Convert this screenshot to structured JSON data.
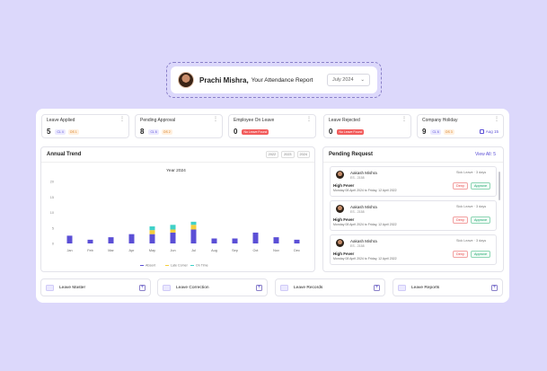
{
  "header": {
    "name": "Prachi Mishra,",
    "subtitle": "Your Attendance Report",
    "month": "July 2024"
  },
  "cards": [
    {
      "title": "Leave Applied",
      "value": "5",
      "chips": [
        {
          "text": "CL 4",
          "kind": "blue"
        },
        {
          "text": "OS 1",
          "kind": "orange"
        }
      ]
    },
    {
      "title": "Pending Approval",
      "value": "8",
      "chips": [
        {
          "text": "CL 6",
          "kind": "blue"
        },
        {
          "text": "OS 2",
          "kind": "orange"
        }
      ]
    },
    {
      "title": "Employee On Leave",
      "value": "0",
      "chips": [
        {
          "text": "No Leave Found",
          "kind": "red"
        }
      ]
    },
    {
      "title": "Leave Rejected",
      "value": "0",
      "chips": [
        {
          "text": "No Leave Found",
          "kind": "red"
        }
      ]
    },
    {
      "title": "Company Holiday",
      "value": "9",
      "chips": [
        {
          "text": "CL 6",
          "kind": "blue"
        },
        {
          "text": "OS 3",
          "kind": "orange"
        }
      ],
      "extra": "Aug 15"
    }
  ],
  "trend": {
    "title": "Annual Trend",
    "years": [
      "2022",
      "2023",
      "2024"
    ]
  },
  "chart_data": {
    "type": "bar",
    "title": "Year 2024",
    "categories": [
      "Jan",
      "Feb",
      "Mar",
      "Apr",
      "May",
      "Jun",
      "Jul",
      "Aug",
      "Sep",
      "Oct",
      "Nov",
      "Dec"
    ],
    "yticks": [
      "0",
      "5",
      "10",
      "15",
      "20"
    ],
    "ylim": [
      0,
      20
    ],
    "series": [
      {
        "name": "Absent",
        "color": "#5b4fd6",
        "values": [
          2.5,
          1.2,
          2,
          3,
          3,
          3.5,
          4.5,
          1.6,
          1.6,
          3.5,
          2,
          1.2
        ]
      },
      {
        "name": "Late Comer",
        "color": "#f5cf3b",
        "values": [
          0,
          0,
          0,
          0,
          1.3,
          1,
          1.5,
          0,
          0,
          0,
          0,
          0
        ]
      },
      {
        "name": "On Time",
        "color": "#3fd1c8",
        "values": [
          0,
          0,
          0,
          0,
          1.2,
          1.5,
          1,
          0,
          0,
          0,
          0,
          0
        ]
      }
    ],
    "legend_placement": "bottom"
  },
  "pending": {
    "title": "Pending Request",
    "view_all": "View All: 5",
    "requests": [
      {
        "name": "Aakash Mishra",
        "id": "ES - 2158",
        "type": "Sick Leave · 3 days",
        "reason": "High Fever",
        "dates": "Monday 08 April 2024 to Friday, 12 April 2022",
        "deny": "Deny",
        "approve": "Approve"
      },
      {
        "name": "Aakash Mishra",
        "id": "ES - 2158",
        "type": "Sick Leave · 3 days",
        "reason": "High Fever",
        "dates": "Monday 08 April 2024 to Friday, 12 April 2022",
        "deny": "Deny",
        "approve": "Approve"
      },
      {
        "name": "Aakash Mishra",
        "id": "ES - 2158",
        "type": "Sick Leave · 3 days",
        "reason": "High Fever",
        "dates": "Monday 08 April 2024 to Friday, 12 April 2022",
        "deny": "Deny",
        "approve": "Approve"
      }
    ]
  },
  "links": [
    {
      "label": "Leave Master"
    },
    {
      "label": "Leave Correction"
    },
    {
      "label": "Leave Records"
    },
    {
      "label": "Leave Reports"
    }
  ],
  "colors": {
    "accent": "#5b4fd6",
    "background": "#dcd8fb"
  }
}
